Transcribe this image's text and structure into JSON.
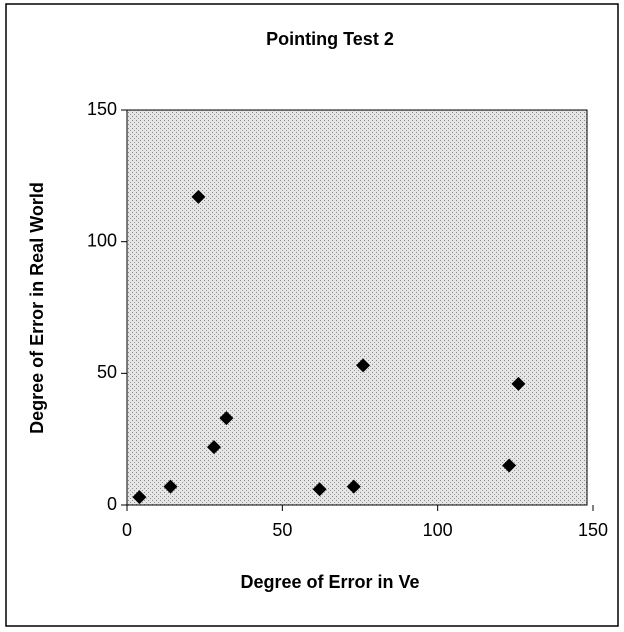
{
  "chart_data": {
    "type": "scatter",
    "title": "Pointing Test 2",
    "x_label": "Degree of Error in Ve",
    "y_label": "Degree of Error in Real World",
    "series": [
      {
        "color": "#000000",
        "x": [
          4,
          14,
          23,
          28,
          32,
          62,
          73,
          76,
          123,
          126
        ],
        "values": [
          3,
          7,
          117,
          22,
          33,
          6,
          7,
          53,
          15,
          46
        ]
      }
    ],
    "xlim": [
      0,
      150
    ],
    "xticks": [
      0,
      50,
      100,
      150
    ],
    "ylim": [
      0,
      150
    ],
    "yticks": [
      0,
      50,
      100,
      150
    ]
  }
}
